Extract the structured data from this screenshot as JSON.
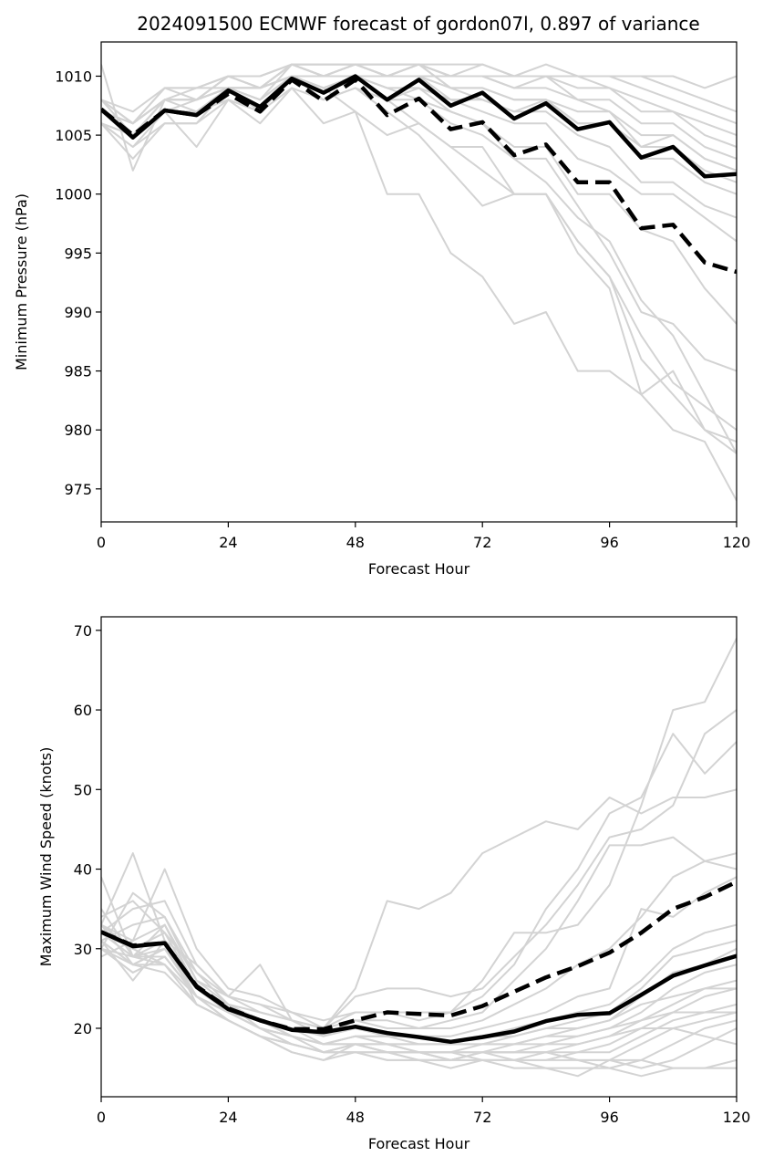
{
  "figure": {
    "title": "2024091500 ECMWF forecast of gordon07l, 0.897 of variance"
  },
  "colors": {
    "member": "#d3d3d3",
    "highlight": "#000000"
  },
  "chart_data": [
    {
      "type": "line",
      "xlabel": "Forecast Hour",
      "ylabel": "Minimum Pressure (hPa)",
      "xlim": [
        0,
        120
      ],
      "ylim": [
        972.2,
        1012.9
      ],
      "xticks": [
        0,
        24,
        48,
        72,
        96,
        120
      ],
      "yticks": [
        975,
        980,
        985,
        990,
        995,
        1000,
        1005,
        1010
      ],
      "grid": false,
      "x": [
        0,
        6,
        12,
        18,
        24,
        30,
        36,
        42,
        48,
        54,
        60,
        66,
        72,
        78,
        84,
        90,
        96,
        102,
        108,
        114,
        120
      ],
      "members": [
        [
          1011,
          1002,
          1008,
          1007,
          1009,
          1007,
          1010,
          1009,
          1007,
          1000,
          1000,
          995,
          993,
          989,
          990,
          985,
          985,
          983,
          980,
          979,
          974
        ],
        [
          1007,
          1005,
          1007,
          1007,
          1008,
          1007,
          1010,
          1008,
          1009,
          1007,
          1005,
          1002,
          999,
          1000,
          1000,
          996,
          993,
          986,
          983,
          980,
          978
        ],
        [
          1006,
          1003,
          1006,
          1006,
          1009,
          1008,
          1010,
          1009,
          1010,
          1008,
          1006,
          1004,
          1002,
          1000,
          1000,
          995,
          992,
          983,
          985,
          980,
          979
        ],
        [
          1008,
          1006,
          1008,
          1008,
          1009,
          1008,
          1010,
          1009,
          1010,
          1009,
          1008,
          1007,
          1006,
          1003,
          1001,
          998,
          996,
          991,
          988,
          983,
          978
        ],
        [
          1008,
          1005,
          1007,
          1007,
          1009,
          1008,
          1010,
          1009,
          1010,
          1008,
          1008,
          1006,
          1005,
          1003,
          1003,
          999,
          995,
          990,
          989,
          986,
          985
        ],
        [
          1007,
          1006,
          1008,
          1008,
          1009,
          1008,
          1011,
          1010,
          1010,
          1009,
          1009,
          1007,
          1006,
          1004,
          1004,
          1000,
          1000,
          997,
          996,
          992,
          989
        ],
        [
          1008,
          1006,
          1009,
          1008,
          1010,
          1009,
          1011,
          1010,
          1011,
          1010,
          1010,
          1008,
          1007,
          1006,
          1006,
          1003,
          1002,
          1000,
          1000,
          998,
          996
        ],
        [
          1007,
          1005,
          1008,
          1008,
          1010,
          1009,
          1011,
          1010,
          1011,
          1010,
          1010,
          1009,
          1008,
          1007,
          1007,
          1005,
          1004,
          1001,
          1001,
          999,
          998
        ],
        [
          1007,
          1006,
          1008,
          1009,
          1009,
          1009,
          1011,
          1011,
          1011,
          1010,
          1011,
          1009,
          1009,
          1008,
          1008,
          1006,
          1006,
          1003,
          1003,
          1001,
          1000
        ],
        [
          1006,
          1005,
          1008,
          1008,
          1010,
          1009,
          1011,
          1011,
          1011,
          1011,
          1011,
          1009,
          1009,
          1008,
          1008,
          1007,
          1007,
          1004,
          1004,
          1002,
          1001
        ],
        [
          1008,
          1006,
          1009,
          1009,
          1010,
          1010,
          1011,
          1011,
          1011,
          1011,
          1011,
          1010,
          1010,
          1009,
          1009,
          1008,
          1007,
          1005,
          1005,
          1003,
          1002
        ],
        [
          1007,
          1005,
          1008,
          1008,
          1009,
          1009,
          1010,
          1010,
          1010,
          1010,
          1010,
          1010,
          1010,
          1009,
          1010,
          1008,
          1008,
          1006,
          1006,
          1004,
          1003
        ],
        [
          1006,
          1004,
          1007,
          1008,
          1009,
          1009,
          1010,
          1010,
          1011,
          1010,
          1010,
          1010,
          1010,
          1010,
          1010,
          1009,
          1009,
          1007,
          1007,
          1005,
          1004
        ],
        [
          1006,
          1005,
          1007,
          1007,
          1009,
          1009,
          1010,
          1009,
          1010,
          1010,
          1011,
          1010,
          1011,
          1010,
          1010,
          1010,
          1009,
          1008,
          1007,
          1006,
          1005
        ],
        [
          1007,
          1006,
          1008,
          1008,
          1010,
          1009,
          1011,
          1010,
          1010,
          1010,
          1011,
          1010,
          1010,
          1010,
          1010,
          1010,
          1010,
          1009,
          1008,
          1007,
          1006
        ],
        [
          1008,
          1007,
          1009,
          1009,
          1010,
          1010,
          1011,
          1011,
          1011,
          1011,
          1011,
          1011,
          1011,
          1010,
          1011,
          1010,
          1010,
          1010,
          1009,
          1008,
          1007
        ],
        [
          1007,
          1006,
          1008,
          1008,
          1009,
          1009,
          1010,
          1010,
          1010,
          1010,
          1010,
          1010,
          1010,
          1010,
          1010,
          1010,
          1010,
          1010,
          1010,
          1009,
          1010
        ],
        [
          1006,
          1004,
          1006,
          1006,
          1008,
          1007,
          1009,
          1008,
          1009,
          1008,
          1009,
          1008,
          1008,
          1007,
          1008,
          1006,
          1006,
          1004,
          1005,
          1003,
          1002
        ],
        [
          1007,
          1005,
          1007,
          1004,
          1008,
          1006,
          1009,
          1006,
          1007,
          1005,
          1006,
          1004,
          1004,
          1000,
          1000,
          996,
          993,
          988,
          984,
          982,
          980
        ]
      ],
      "series": [
        {
          "style": "solid",
          "values": [
            1007.2,
            1004.8,
            1007.1,
            1006.7,
            1008.8,
            1007.4,
            1009.8,
            1008.6,
            1010.0,
            1008.0,
            1009.7,
            1007.5,
            1008.6,
            1006.4,
            1007.7,
            1005.5,
            1006.1,
            1003.1,
            1004.0,
            1001.5,
            1001.7
          ]
        },
        {
          "style": "dashed",
          "values": [
            1007.2,
            1005.0,
            1007.1,
            1006.7,
            1008.5,
            1007.0,
            1009.7,
            1007.9,
            1009.7,
            1006.7,
            1008.1,
            1005.5,
            1006.1,
            1003.3,
            1004.2,
            1001.0,
            1001.0,
            997.1,
            997.4,
            994.2,
            993.4
          ]
        }
      ]
    },
    {
      "type": "line",
      "xlabel": "Forecast Hour",
      "ylabel": "Maximum Wind Speed (knots)",
      "xlim": [
        0,
        120
      ],
      "ylim": [
        11.4,
        71.7
      ],
      "xticks": [
        0,
        24,
        48,
        72,
        96,
        120
      ],
      "yticks": [
        20,
        30,
        40,
        50,
        60,
        70
      ],
      "grid": false,
      "x": [
        0,
        6,
        12,
        18,
        24,
        30,
        36,
        42,
        48,
        54,
        60,
        66,
        72,
        78,
        84,
        90,
        96,
        102,
        108,
        114,
        120
      ],
      "members": [
        [
          39,
          29,
          33,
          26,
          24,
          28,
          21,
          20,
          25,
          36,
          35,
          37,
          42,
          44,
          46,
          45,
          49,
          47,
          49,
          49,
          50
        ],
        [
          33,
          42,
          31,
          28,
          24,
          23,
          21,
          20,
          24,
          25,
          25,
          24,
          25,
          29,
          33,
          38,
          44,
          45,
          48,
          57,
          60
        ],
        [
          33,
          31,
          40,
          30,
          25,
          24,
          22,
          20,
          22,
          22,
          22,
          22,
          26,
          32,
          32,
          33,
          38,
          48,
          60,
          61,
          69
        ],
        [
          32,
          35,
          36,
          28,
          24,
          23,
          22,
          21,
          22,
          22,
          21,
          22,
          24,
          28,
          35,
          40,
          47,
          49,
          57,
          52,
          56
        ],
        [
          31,
          33,
          34,
          27,
          23,
          22,
          21,
          20,
          21,
          21,
          20,
          21,
          22,
          26,
          30,
          36,
          43,
          43,
          44,
          41,
          42
        ],
        [
          34,
          36,
          32,
          27,
          24,
          22,
          21,
          19,
          21,
          20,
          20,
          20,
          21,
          23,
          25,
          28,
          30,
          34,
          39,
          41,
          40
        ],
        [
          30,
          37,
          34,
          26,
          23,
          21,
          20,
          19,
          20,
          19,
          19,
          19,
          20,
          21,
          22,
          24,
          25,
          35,
          34,
          37,
          39
        ],
        [
          33,
          28,
          30,
          25,
          22,
          21,
          20,
          18,
          19,
          19,
          18,
          18,
          19,
          20,
          21,
          22,
          23,
          26,
          30,
          32,
          33
        ],
        [
          30,
          27,
          29,
          24,
          22,
          21,
          19,
          18,
          19,
          18,
          18,
          18,
          19,
          19,
          20,
          21,
          22,
          25,
          29,
          30,
          31
        ],
        [
          32,
          30,
          28,
          24,
          22,
          20,
          19,
          17,
          18,
          18,
          17,
          17,
          18,
          18,
          19,
          20,
          21,
          24,
          27,
          28,
          30
        ],
        [
          29,
          31,
          33,
          25,
          23,
          20,
          19,
          18,
          18,
          17,
          17,
          16,
          17,
          18,
          18,
          19,
          20,
          22,
          25,
          27,
          28
        ],
        [
          31,
          26,
          31,
          23,
          21,
          19,
          18,
          17,
          17,
          17,
          16,
          16,
          17,
          17,
          17,
          18,
          19,
          21,
          23,
          25,
          26
        ],
        [
          35,
          29,
          30,
          24,
          21,
          19,
          17,
          16,
          17,
          16,
          16,
          15,
          16,
          16,
          17,
          17,
          18,
          20,
          22,
          24,
          25
        ],
        [
          30,
          28,
          27,
          23,
          21,
          19,
          18,
          17,
          17,
          16,
          16,
          16,
          16,
          16,
          16,
          17,
          17,
          19,
          21,
          22,
          23
        ],
        [
          32,
          29,
          29,
          24,
          22,
          20,
          18,
          17,
          18,
          17,
          17,
          17,
          16,
          15,
          15,
          14,
          16,
          18,
          20,
          21,
          22
        ],
        [
          31,
          28,
          28,
          23,
          21,
          19,
          17,
          16,
          18,
          17,
          16,
          16,
          17,
          16,
          16,
          16,
          15,
          16,
          18,
          20,
          21
        ],
        [
          33,
          30,
          31,
          24,
          22,
          20,
          19,
          18,
          18,
          18,
          17,
          17,
          17,
          17,
          17,
          16,
          16,
          15,
          16,
          18,
          20
        ],
        [
          30,
          27,
          29,
          24,
          21,
          19,
          18,
          17,
          17,
          17,
          17,
          16,
          16,
          16,
          15,
          15,
          15,
          14,
          15,
          15,
          16
        ],
        [
          32,
          29,
          31,
          25,
          22,
          20,
          19,
          18,
          18,
          18,
          17,
          17,
          17,
          17,
          17,
          16,
          16,
          16,
          15,
          15,
          15
        ],
        [
          31,
          28,
          30,
          24,
          22,
          20,
          18,
          17,
          18,
          17,
          17,
          16,
          17,
          17,
          18,
          18,
          19,
          20,
          20,
          19,
          18
        ],
        [
          33,
          30,
          32,
          25,
          23,
          21,
          19,
          18,
          19,
          18,
          18,
          18,
          18,
          18,
          19,
          19,
          20,
          21,
          22,
          22,
          22
        ],
        [
          30,
          29,
          28,
          24,
          22,
          21,
          19,
          18,
          19,
          19,
          19,
          18,
          18,
          19,
          20,
          20,
          21,
          23,
          24,
          25,
          25
        ]
      ],
      "series": [
        {
          "style": "solid",
          "values": [
            32.1,
            30.3,
            30.7,
            25.2,
            22.4,
            21.0,
            19.8,
            19.5,
            20.2,
            19.4,
            18.9,
            18.3,
            18.9,
            19.6,
            20.9,
            21.7,
            21.9,
            24.2,
            26.6,
            27.9,
            29.1
          ]
        },
        {
          "style": "dashed",
          "values": [
            32.1,
            30.4,
            30.7,
            25.3,
            22.5,
            21.0,
            19.9,
            19.9,
            21.0,
            22.0,
            21.8,
            21.6,
            22.8,
            24.6,
            26.4,
            27.8,
            29.5,
            32.0,
            35.0,
            36.5,
            38.4
          ]
        }
      ]
    }
  ]
}
